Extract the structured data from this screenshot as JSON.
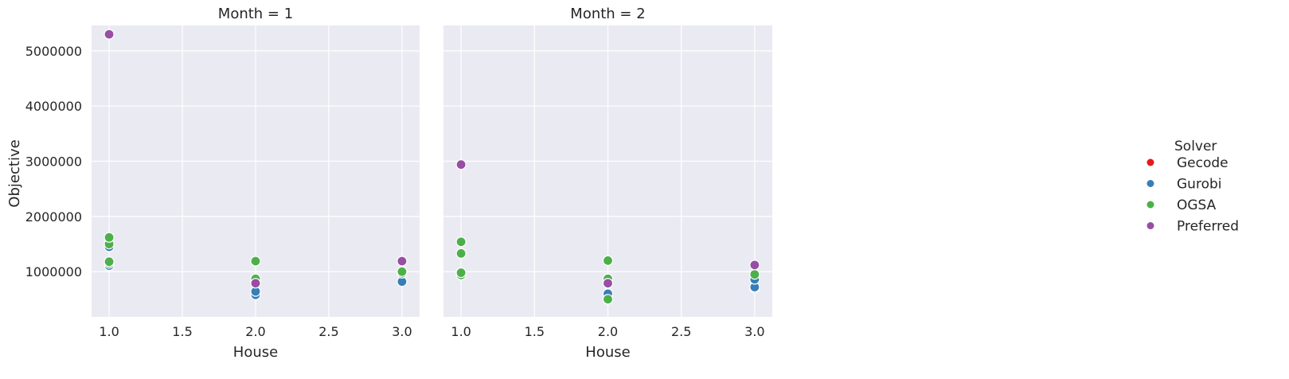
{
  "chart_data": {
    "type": "scatter",
    "xlabel": "House",
    "ylabel": "Objective",
    "xlim": [
      0.88,
      3.12
    ],
    "ylim": [
      180000,
      5460000
    ],
    "xticks": [
      "1.0",
      "1.5",
      "2.0",
      "2.5",
      "3.0"
    ],
    "xtick_values": [
      1.0,
      1.5,
      2.0,
      2.5,
      3.0
    ],
    "yticks": [
      "1000000",
      "2000000",
      "3000000",
      "4000000",
      "5000000"
    ],
    "ytick_values": [
      1000000,
      2000000,
      3000000,
      4000000,
      5000000
    ],
    "grid": true,
    "legend": {
      "title": "Solver",
      "placement": "right",
      "entries": [
        {
          "name": "Gecode",
          "color": "#e41a1c"
        },
        {
          "name": "Gurobi",
          "color": "#377eb8"
        },
        {
          "name": "OGSA",
          "color": "#4daf4a"
        },
        {
          "name": "Preferred",
          "color": "#984ea3"
        }
      ]
    },
    "panels": [
      {
        "title": "Month = 1",
        "series": [
          {
            "name": "Gecode",
            "points": []
          },
          {
            "name": "Gurobi",
            "points": [
              [
                1,
                1110000
              ],
              [
                1,
                1450000
              ],
              [
                2,
                580000
              ],
              [
                2,
                640000
              ],
              [
                3,
                820000
              ]
            ]
          },
          {
            "name": "OGSA",
            "points": [
              [
                1,
                1150000
              ],
              [
                1,
                1180000
              ],
              [
                1,
                1500000
              ],
              [
                1,
                1620000
              ],
              [
                2,
                870000
              ],
              [
                2,
                1190000
              ],
              [
                3,
                970000
              ],
              [
                3,
                1000000
              ]
            ]
          },
          {
            "name": "Preferred",
            "points": [
              [
                1,
                5300000
              ],
              [
                2,
                790000
              ],
              [
                3,
                1190000
              ]
            ]
          }
        ]
      },
      {
        "title": "Month = 2",
        "series": [
          {
            "name": "Gecode",
            "points": []
          },
          {
            "name": "Gurobi",
            "points": [
              [
                2,
                570000
              ],
              [
                2,
                600000
              ],
              [
                3,
                700000
              ],
              [
                3,
                720000
              ],
              [
                3,
                860000
              ]
            ]
          },
          {
            "name": "OGSA",
            "points": [
              [
                1,
                940000
              ],
              [
                1,
                980000
              ],
              [
                1,
                1330000
              ],
              [
                1,
                1540000
              ],
              [
                2,
                500000
              ],
              [
                2,
                870000
              ],
              [
                2,
                1200000
              ],
              [
                3,
                950000
              ]
            ]
          },
          {
            "name": "Preferred",
            "points": [
              [
                1,
                2940000
              ],
              [
                2,
                790000
              ],
              [
                3,
                1120000
              ]
            ]
          }
        ]
      }
    ]
  }
}
